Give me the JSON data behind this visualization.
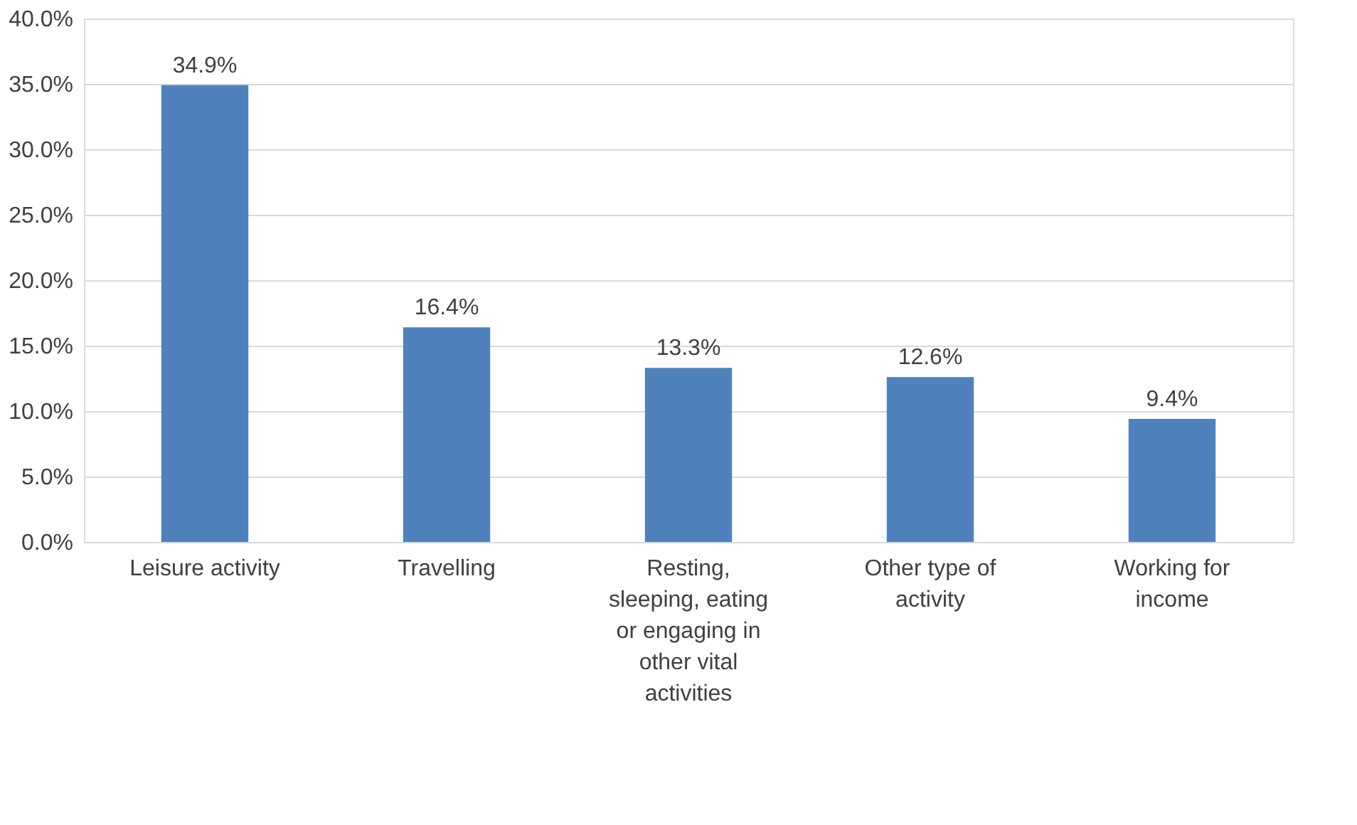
{
  "chart_data": {
    "type": "bar",
    "categories": [
      "Leisure activity",
      "Travelling",
      "Resting, sleeping, eating or engaging in other vital activities",
      "Other type of activity",
      "Working for income"
    ],
    "values": [
      34.9,
      16.4,
      13.3,
      12.6,
      9.4
    ],
    "value_labels": [
      "34.9%",
      "16.4%",
      "13.3%",
      "12.6%",
      "9.4%"
    ],
    "color": "#4f81bd",
    "ylim": [
      0,
      40
    ],
    "yticks": [
      {
        "value": 0,
        "label": "0.0%"
      },
      {
        "value": 5,
        "label": "5.0%"
      },
      {
        "value": 10,
        "label": "10.0%"
      },
      {
        "value": 15,
        "label": "15.0%"
      },
      {
        "value": 20,
        "label": "20.0%"
      },
      {
        "value": 25,
        "label": "25.0%"
      },
      {
        "value": 30,
        "label": "30.0%"
      },
      {
        "value": 35,
        "label": "35.0%"
      },
      {
        "value": 40,
        "label": "40.0%"
      }
    ],
    "grid": "y"
  }
}
